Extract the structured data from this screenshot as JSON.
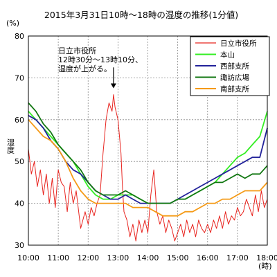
{
  "chart_data": {
    "type": "line",
    "title": "2015年3月31日10時～18時の湿度の推移(1分値)",
    "unit_top": "(%)",
    "ylabel": "湿度",
    "x_unit": "(時)",
    "ylim": [
      30,
      80
    ],
    "y_ticks": [
      "30",
      "40",
      "50",
      "60",
      "70",
      "80"
    ],
    "xlim": [
      10,
      18
    ],
    "x_ticks": [
      "10:00",
      "11:00",
      "12:00",
      "13:00",
      "14:00",
      "15:00",
      "16:00",
      "17:00",
      "18:00"
    ],
    "grid": true,
    "legend_position": "top-right",
    "annotation": {
      "lines": [
        "日立市役所",
        "12時30分～13時10分、",
        "湿度が上がる。"
      ],
      "arrow_x": 12.85,
      "arrow_from_y": 72.5,
      "arrow_to_y": 67.5
    },
    "series": [
      {
        "name": "日立市役所",
        "color": "#e8241f",
        "x": [
          10,
          10.1,
          10.2,
          10.3,
          10.4,
          10.5,
          10.6,
          10.7,
          10.8,
          10.9,
          11,
          11.1,
          11.2,
          11.3,
          11.4,
          11.5,
          11.6,
          11.75,
          11.9,
          12,
          12.1,
          12.2,
          12.3,
          12.4,
          12.5,
          12.55,
          12.6,
          12.7,
          12.8,
          12.85,
          12.9,
          13,
          13.1,
          13.15,
          13.2,
          13.3,
          13.4,
          13.5,
          13.6,
          13.7,
          13.8,
          13.9,
          14,
          14.1,
          14.2,
          14.3,
          14.4,
          14.5,
          14.6,
          14.7,
          14.8,
          14.9,
          15,
          15.1,
          15.2,
          15.3,
          15.4,
          15.5,
          15.6,
          15.7,
          15.8,
          15.9,
          16,
          16.1,
          16.2,
          16.3,
          16.4,
          16.5,
          16.6,
          16.7,
          16.8,
          16.9,
          17,
          17.1,
          17.2,
          17.3,
          17.4,
          17.5,
          17.6,
          17.7,
          17.8,
          17.9,
          18
        ],
        "values": [
          53,
          47,
          50,
          44,
          48,
          42,
          47,
          40,
          46,
          39,
          48,
          45,
          44,
          38,
          45,
          40,
          43,
          34,
          38,
          35,
          39,
          37,
          40,
          42,
          52,
          56,
          60,
          64,
          62,
          66,
          63,
          60,
          52,
          44,
          38,
          36,
          32,
          35,
          31,
          36,
          33,
          36,
          33,
          42,
          48,
          38,
          35,
          37,
          33,
          36,
          34,
          31,
          33,
          35,
          32,
          36,
          33,
          35,
          32,
          36,
          34,
          33,
          35,
          33,
          36,
          34,
          37,
          34,
          38,
          35,
          37,
          36,
          39,
          37,
          38,
          41,
          39,
          37,
          42,
          38,
          43,
          39,
          41
        ]
      },
      {
        "name": "本山",
        "color": "#33ee22",
        "x": [
          10,
          10.25,
          10.5,
          10.75,
          11,
          11.25,
          11.5,
          11.75,
          12,
          12.25,
          12.5,
          12.75,
          13,
          13.25,
          13.5,
          13.75,
          14,
          14.25,
          14.5,
          14.75,
          15,
          15.25,
          15.5,
          15.75,
          16,
          16.25,
          16.5,
          16.75,
          17,
          17.25,
          17.5,
          17.75,
          18
        ],
        "values": [
          62,
          60,
          58,
          56,
          54,
          52,
          50,
          47,
          44,
          42,
          41,
          41,
          42,
          42,
          42,
          41,
          40,
          40,
          40,
          40,
          41,
          41,
          42,
          43,
          44,
          45,
          47,
          49,
          51,
          52,
          54,
          56,
          62
        ]
      },
      {
        "name": "西部支所",
        "color": "#22229a",
        "x": [
          10,
          10.25,
          10.5,
          10.75,
          11,
          11.25,
          11.5,
          11.75,
          12,
          12.25,
          12.5,
          12.75,
          13,
          13.25,
          13.5,
          13.75,
          14,
          14.25,
          14.5,
          14.75,
          15,
          15.25,
          15.5,
          15.75,
          16,
          16.25,
          16.5,
          16.75,
          17,
          17.25,
          17.5,
          17.75,
          18
        ],
        "values": [
          61,
          60,
          58,
          55,
          53,
          50,
          48,
          47,
          45,
          43,
          42,
          41,
          41,
          42,
          41,
          40,
          40,
          40,
          40,
          40,
          41,
          42,
          43,
          44,
          45,
          46,
          47,
          48,
          49,
          50,
          51,
          51,
          58
        ]
      },
      {
        "name": "諏訪広場",
        "color": "#117711",
        "x": [
          10,
          10.25,
          10.5,
          10.75,
          11,
          11.25,
          11.5,
          11.75,
          12,
          12.25,
          12.5,
          12.75,
          13,
          13.25,
          13.5,
          13.75,
          14,
          14.25,
          14.5,
          14.75,
          15,
          15.25,
          15.5,
          15.75,
          16,
          16.25,
          16.5,
          16.75,
          17,
          17.25,
          17.5,
          17.75,
          18
        ],
        "values": [
          64,
          62,
          59,
          57,
          54,
          52,
          50,
          48,
          45,
          43,
          42,
          42,
          42,
          43,
          42,
          41,
          40,
          40,
          40,
          40,
          41,
          41,
          42,
          43,
          44,
          45,
          45,
          46,
          47,
          46,
          47,
          47,
          49
        ]
      },
      {
        "name": "南部支所",
        "color": "#f59a16",
        "x": [
          10,
          10.25,
          10.5,
          10.75,
          11,
          11.25,
          11.5,
          11.75,
          12,
          12.25,
          12.5,
          12.75,
          13,
          13.25,
          13.5,
          13.75,
          14,
          14.25,
          14.5,
          14.75,
          15,
          15.25,
          15.5,
          15.75,
          16,
          16.25,
          16.5,
          16.75,
          17,
          17.25,
          17.5,
          17.75,
          18
        ],
        "values": [
          60,
          58,
          56,
          55,
          53,
          50,
          46,
          43,
          41,
          40,
          40,
          40,
          40,
          40,
          39,
          39,
          39,
          38,
          37,
          37,
          37,
          38,
          38,
          39,
          40,
          40,
          41,
          41,
          42,
          43,
          43,
          43,
          45
        ]
      }
    ]
  }
}
